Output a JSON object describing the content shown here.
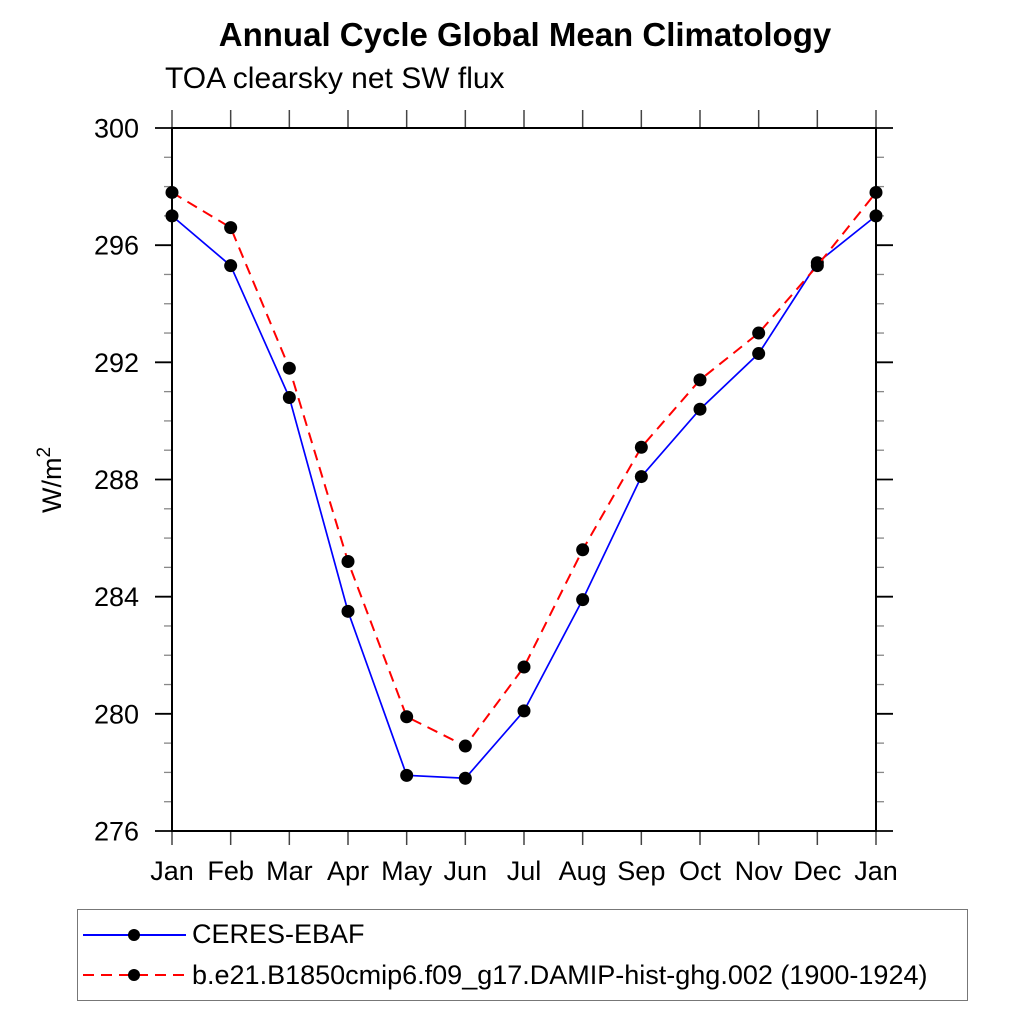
{
  "chart_data": {
    "type": "line",
    "title": "Annual Cycle Global Mean Climatology",
    "subtitle": "TOA clearsky net SW flux",
    "ylabel": "W/m²",
    "ylabel_base": "W/m",
    "ylabel_sup": "2",
    "xlabel": "",
    "ylim": [
      276,
      300
    ],
    "ytick_major": [
      276,
      280,
      284,
      288,
      292,
      296,
      300
    ],
    "ytick_minor_step": 1,
    "grid": false,
    "legend_position": "bottom-box",
    "x_categories": [
      "Jan",
      "Feb",
      "Mar",
      "Apr",
      "May",
      "Jun",
      "Jul",
      "Aug",
      "Sep",
      "Oct",
      "Nov",
      "Dec",
      "Jan"
    ],
    "marker_color": "#000000",
    "series": [
      {
        "name": "CERES-EBAF",
        "color": "#0000ff",
        "style": "solid",
        "marker": "circle",
        "values": [
          297.0,
          295.3,
          290.8,
          283.5,
          277.9,
          277.8,
          280.1,
          283.9,
          288.1,
          290.4,
          292.3,
          295.4,
          297.0
        ]
      },
      {
        "name": "b.e21.B1850cmip6.f09_g17.DAMIP-hist-ghg.002 (1900-1924)",
        "color": "#ff0000",
        "style": "dashed",
        "marker": "circle",
        "values": [
          297.8,
          296.6,
          291.8,
          285.2,
          279.9,
          278.9,
          281.6,
          285.6,
          289.1,
          291.4,
          293.0,
          295.3,
          297.8
        ]
      }
    ]
  }
}
